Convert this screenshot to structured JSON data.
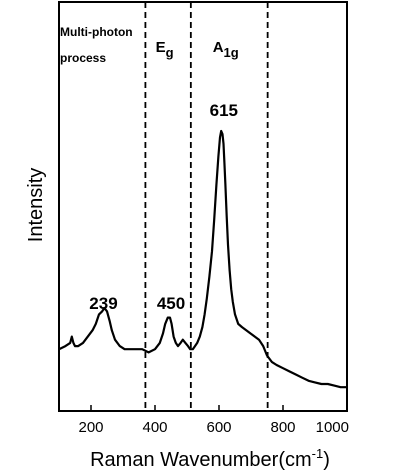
{
  "chart_data": {
    "type": "line",
    "title": "",
    "xlabel": "Raman Wavenumber(cm",
    "xlabel_sup": "-1",
    "xlabel_end": ")",
    "ylabel": "Intensity",
    "xlim": [
      100,
      1000
    ],
    "ylim": [
      0,
      1
    ],
    "y_ticks_shown": false,
    "grid": false,
    "legend": "none",
    "x_ticks": [
      200,
      400,
      600,
      800,
      1000
    ],
    "x_tick_labels": [
      "200",
      "400",
      "600",
      "800",
      "1000"
    ],
    "region_boundaries": [
      370,
      512,
      752
    ],
    "regions": [
      {
        "x": 100,
        "lines": [
          "Multi-photon",
          "process"
        ]
      },
      {
        "x": 430,
        "label": "E",
        "sub": "g"
      },
      {
        "x": 621,
        "label": "A",
        "sub": "1g"
      }
    ],
    "peak_labels": [
      {
        "x": 239,
        "y": 0.2,
        "label": "239"
      },
      {
        "x": 450,
        "y": 0.2,
        "label": "450"
      },
      {
        "x": 615,
        "y": 0.81,
        "label": "615"
      }
    ],
    "series": [
      {
        "x": [
          100,
          120,
          135,
          140,
          145,
          150,
          160,
          175,
          190,
          205,
          215,
          225,
          235,
          242,
          250,
          258,
          265,
          275,
          290,
          305,
          320,
          340,
          360,
          380,
          400,
          415,
          425,
          432,
          440,
          447,
          452,
          458,
          465,
          472,
          480,
          487,
          495,
          503,
          510,
          518,
          525,
          532,
          540,
          548,
          555,
          562,
          570,
          578,
          585,
          592,
          598,
          603,
          607,
          611,
          614,
          617,
          620,
          624,
          628,
          633,
          638,
          643,
          650,
          660,
          672,
          685,
          698,
          712,
          725,
          738,
          750,
          765,
          780,
          800,
          820,
          840,
          860,
          880,
          900,
          920,
          940,
          960,
          980,
          1000
        ],
        "y": [
          0.11,
          0.12,
          0.13,
          0.15,
          0.13,
          0.12,
          0.12,
          0.13,
          0.15,
          0.17,
          0.19,
          0.22,
          0.23,
          0.24,
          0.23,
          0.2,
          0.17,
          0.14,
          0.12,
          0.11,
          0.11,
          0.11,
          0.11,
          0.1,
          0.11,
          0.13,
          0.16,
          0.19,
          0.21,
          0.21,
          0.19,
          0.15,
          0.13,
          0.12,
          0.13,
          0.14,
          0.13,
          0.12,
          0.11,
          0.11,
          0.12,
          0.13,
          0.15,
          0.18,
          0.22,
          0.27,
          0.34,
          0.42,
          0.52,
          0.63,
          0.72,
          0.78,
          0.8,
          0.79,
          0.76,
          0.7,
          0.63,
          0.53,
          0.44,
          0.36,
          0.3,
          0.26,
          0.22,
          0.19,
          0.18,
          0.17,
          0.16,
          0.15,
          0.14,
          0.12,
          0.09,
          0.07,
          0.06,
          0.05,
          0.04,
          0.03,
          0.02,
          0.01,
          0.005,
          0.0,
          0.0,
          -0.005,
          -0.01,
          -0.01
        ]
      }
    ]
  }
}
